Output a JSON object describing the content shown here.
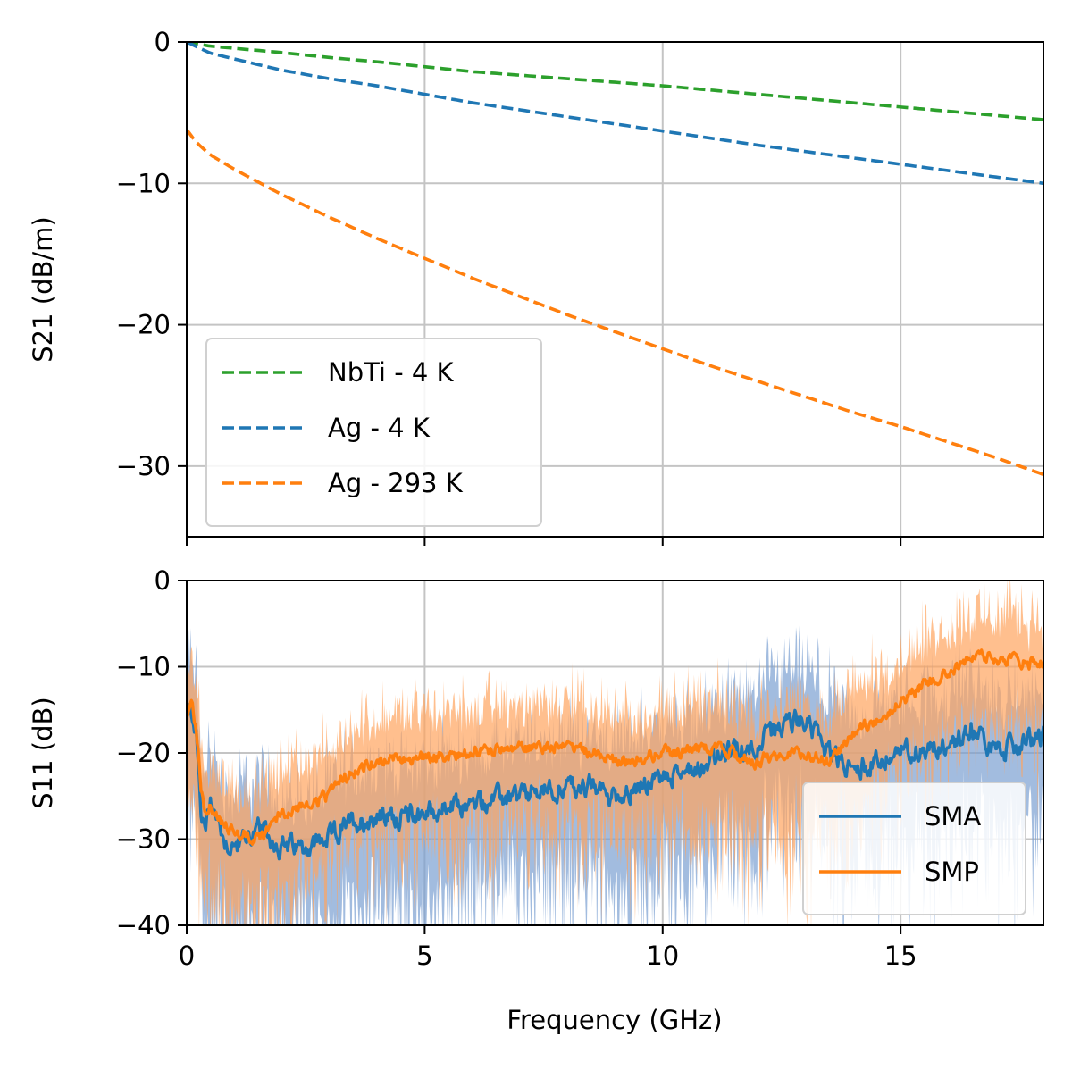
{
  "chart_data": [
    {
      "type": "line",
      "xlabel": "",
      "ylabel": "S21 (dB/m)",
      "xlim": [
        0,
        18
      ],
      "ylim": [
        -35,
        0
      ],
      "xticks": [
        0,
        5,
        10,
        15
      ],
      "yticks": [
        0,
        -10,
        -20,
        -30
      ],
      "ytick_labels": [
        "0",
        "−10",
        "−20",
        "−30"
      ],
      "grid": true,
      "legend_position": "lower-left",
      "series": [
        {
          "name": "NbTi - 4 K",
          "color": "#2ca02c",
          "style": "dashed",
          "points": [
            [
              0,
              0
            ],
            [
              0.5,
              -0.3
            ],
            [
              1,
              -0.45
            ],
            [
              2,
              -0.75
            ],
            [
              3,
              -1.1
            ],
            [
              4,
              -1.4
            ],
            [
              5,
              -1.75
            ],
            [
              6,
              -2.1
            ],
            [
              8,
              -2.6
            ],
            [
              10,
              -3.1
            ],
            [
              12,
              -3.7
            ],
            [
              14,
              -4.3
            ],
            [
              16,
              -4.9
            ],
            [
              18,
              -5.5
            ]
          ]
        },
        {
          "name": "Ag - 4 K",
          "color": "#1f77b4",
          "style": "dashed",
          "points": [
            [
              0,
              0
            ],
            [
              0.25,
              -0.4
            ],
            [
              0.5,
              -0.8
            ],
            [
              1,
              -1.2
            ],
            [
              2,
              -2.0
            ],
            [
              3,
              -2.6
            ],
            [
              4,
              -3.1
            ],
            [
              5,
              -3.7
            ],
            [
              6,
              -4.3
            ],
            [
              7,
              -4.8
            ],
            [
              8,
              -5.3
            ],
            [
              10,
              -6.3
            ],
            [
              12,
              -7.3
            ],
            [
              14,
              -8.2
            ],
            [
              16,
              -9.1
            ],
            [
              18,
              -10.0
            ]
          ]
        },
        {
          "name": "Ag - 293 K",
          "color": "#ff7f0e",
          "style": "dashed",
          "points": [
            [
              0,
              -6.2
            ],
            [
              0.2,
              -7.1
            ],
            [
              0.5,
              -8.0
            ],
            [
              1,
              -9.0
            ],
            [
              1.5,
              -9.9
            ],
            [
              2,
              -10.8
            ],
            [
              3,
              -12.4
            ],
            [
              4,
              -13.9
            ],
            [
              5,
              -15.3
            ],
            [
              6,
              -16.7
            ],
            [
              7,
              -18.0
            ],
            [
              8,
              -19.3
            ],
            [
              9,
              -20.5
            ],
            [
              10,
              -21.7
            ],
            [
              11,
              -22.9
            ],
            [
              12,
              -24.0
            ],
            [
              13,
              -25.1
            ],
            [
              14,
              -26.2
            ],
            [
              15,
              -27.2
            ],
            [
              16,
              -28.3
            ],
            [
              17,
              -29.4
            ],
            [
              18,
              -30.6
            ]
          ]
        }
      ]
    },
    {
      "type": "line",
      "xlabel": "Frequency (GHz)",
      "ylabel": "S11 (dB)",
      "xlim": [
        0,
        18
      ],
      "ylim": [
        -40,
        0
      ],
      "xticks": [
        0,
        5,
        10,
        15
      ],
      "xtick_labels": [
        "0",
        "5",
        "10",
        "15"
      ],
      "yticks": [
        0,
        -10,
        -20,
        -30,
        -40
      ],
      "ytick_labels": [
        "0",
        "−10",
        "−20",
        "−30",
        "−40"
      ],
      "grid": true,
      "legend_position": "lower-right",
      "series": [
        {
          "name": "SMA",
          "color": "#1f77b4",
          "band_color": "#7b9fd1",
          "band_width_db": 8,
          "noise_db": 2.5,
          "points": [
            [
              0,
              -16
            ],
            [
              0.1,
              -15
            ],
            [
              0.2,
              -17.5
            ],
            [
              0.3,
              -27
            ],
            [
              0.4,
              -29
            ],
            [
              0.5,
              -25
            ],
            [
              0.6,
              -27
            ],
            [
              0.8,
              -30
            ],
            [
              1,
              -31
            ],
            [
              1.2,
              -30
            ],
            [
              1.5,
              -29
            ],
            [
              2,
              -31
            ],
            [
              2.5,
              -31
            ],
            [
              3,
              -30
            ],
            [
              3.5,
              -28
            ],
            [
              4,
              -27.5
            ],
            [
              5,
              -27
            ],
            [
              6,
              -26
            ],
            [
              7,
              -25
            ],
            [
              8,
              -24
            ],
            [
              8.5,
              -24
            ],
            [
              9,
              -25
            ],
            [
              10,
              -23
            ],
            [
              11,
              -21
            ],
            [
              12,
              -19
            ],
            [
              12.5,
              -17
            ],
            [
              13,
              -16
            ],
            [
              13.5,
              -20
            ],
            [
              14,
              -22
            ],
            [
              15,
              -20
            ],
            [
              16,
              -19
            ],
            [
              16.5,
              -17
            ],
            [
              17,
              -20
            ],
            [
              17.5,
              -19
            ],
            [
              18,
              -18
            ]
          ]
        },
        {
          "name": "SMP",
          "color": "#ff7f0e",
          "band_color": "#ffa45e",
          "band_width_db": 7,
          "noise_db": 1.4,
          "points": [
            [
              0,
              -16
            ],
            [
              0.1,
              -14.5
            ],
            [
              0.2,
              -17
            ],
            [
              0.3,
              -24
            ],
            [
              0.4,
              -27
            ],
            [
              0.5,
              -26
            ],
            [
              0.7,
              -28
            ],
            [
              1,
              -29
            ],
            [
              1.5,
              -30
            ],
            [
              2,
              -27
            ],
            [
              2.5,
              -26
            ],
            [
              3,
              -25
            ],
            [
              3.5,
              -22
            ],
            [
              4,
              -21
            ],
            [
              5,
              -20.5
            ],
            [
              6,
              -20
            ],
            [
              7,
              -19.5
            ],
            [
              8,
              -19
            ],
            [
              9,
              -21
            ],
            [
              10,
              -20
            ],
            [
              11,
              -19.5
            ],
            [
              12,
              -21
            ],
            [
              12.5,
              -20
            ],
            [
              13,
              -20
            ],
            [
              13.5,
              -21
            ],
            [
              14,
              -18
            ],
            [
              14.5,
              -16
            ],
            [
              15,
              -14
            ],
            [
              15.5,
              -12
            ],
            [
              16,
              -10.5
            ],
            [
              16.5,
              -9
            ],
            [
              17,
              -9
            ],
            [
              17.5,
              -9.5
            ],
            [
              18,
              -9.5
            ]
          ]
        }
      ]
    }
  ]
}
